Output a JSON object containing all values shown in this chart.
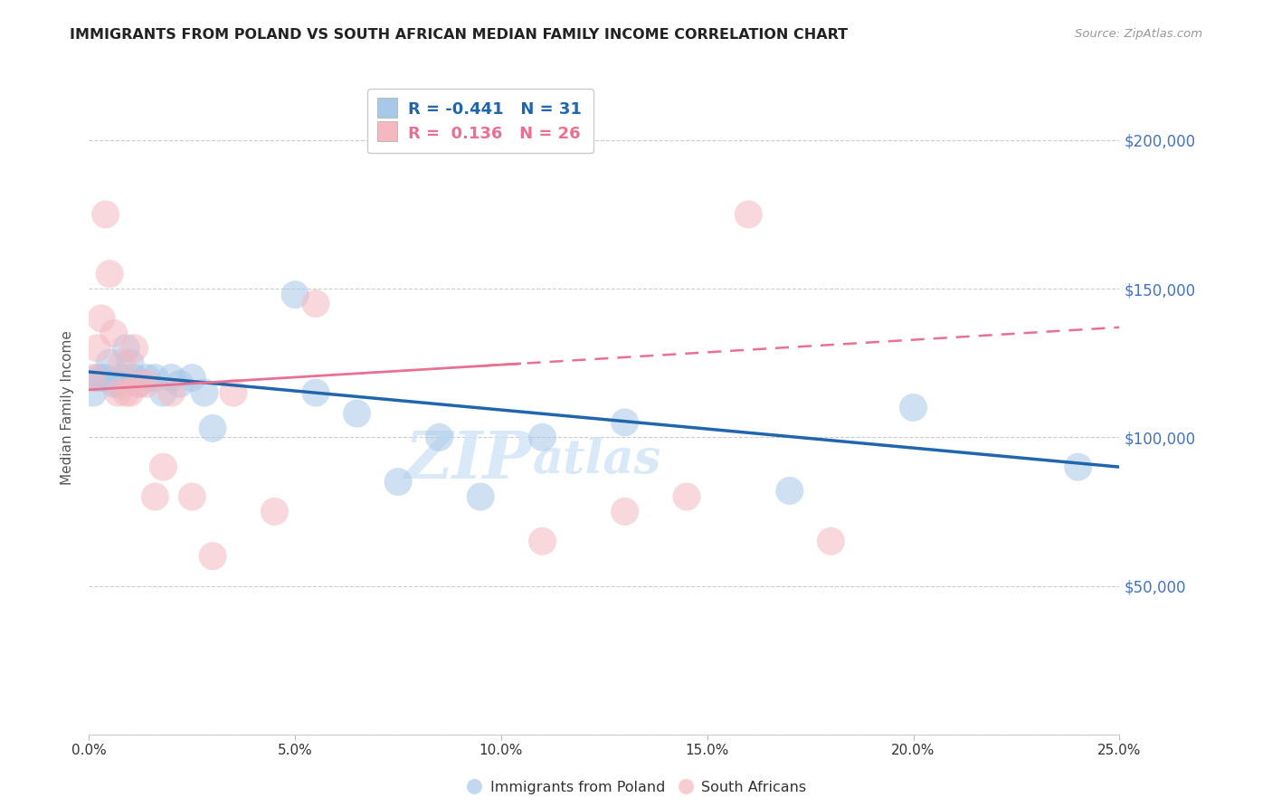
{
  "title": "IMMIGRANTS FROM POLAND VS SOUTH AFRICAN MEDIAN FAMILY INCOME CORRELATION CHART",
  "source": "Source: ZipAtlas.com",
  "ylabel": "Median Family Income",
  "xlim": [
    0.0,
    0.25
  ],
  "ylim": [
    0,
    220000
  ],
  "yticks": [
    0,
    50000,
    100000,
    150000,
    200000
  ],
  "ytick_labels": [
    "",
    "$50,000",
    "$100,000",
    "$150,000",
    "$200,000"
  ],
  "poland_R": -0.441,
  "poland_N": 31,
  "sa_R": 0.136,
  "sa_N": 26,
  "poland_color": "#a8c8e8",
  "sa_color": "#f4b8c0",
  "poland_line_color": "#2166ac",
  "sa_line_color": "#e87090",
  "poland_x": [
    0.001,
    0.002,
    0.003,
    0.004,
    0.005,
    0.006,
    0.007,
    0.008,
    0.009,
    0.01,
    0.011,
    0.012,
    0.014,
    0.016,
    0.018,
    0.02,
    0.022,
    0.025,
    0.028,
    0.03,
    0.05,
    0.055,
    0.065,
    0.075,
    0.085,
    0.095,
    0.11,
    0.13,
    0.17,
    0.2,
    0.24
  ],
  "poland_y": [
    115000,
    120000,
    120000,
    120000,
    125000,
    118000,
    118000,
    120000,
    130000,
    125000,
    120000,
    118000,
    120000,
    120000,
    115000,
    120000,
    118000,
    120000,
    115000,
    103000,
    148000,
    115000,
    108000,
    85000,
    100000,
    80000,
    100000,
    105000,
    82000,
    110000,
    90000
  ],
  "sa_x": [
    0.001,
    0.002,
    0.003,
    0.004,
    0.005,
    0.006,
    0.007,
    0.008,
    0.009,
    0.01,
    0.011,
    0.012,
    0.014,
    0.016,
    0.018,
    0.02,
    0.025,
    0.03,
    0.035,
    0.045,
    0.055,
    0.11,
    0.13,
    0.145,
    0.16,
    0.18
  ],
  "sa_y": [
    120000,
    130000,
    140000,
    175000,
    155000,
    135000,
    115000,
    125000,
    115000,
    115000,
    130000,
    118000,
    118000,
    80000,
    90000,
    115000,
    80000,
    60000,
    115000,
    75000,
    145000,
    65000,
    75000,
    80000,
    175000,
    65000
  ],
  "background_color": "#ffffff",
  "grid_color": "#cccccc",
  "title_color": "#222222",
  "axis_label_color": "#555555",
  "right_tick_color": "#4472c4",
  "watermark_color": "#d0e4f5",
  "legend_box_edge": "#aaaaaa",
  "xtick_labels": [
    "0.0%",
    "5.0%",
    "10.0%",
    "15.0%",
    "20.0%",
    "25.0%"
  ]
}
